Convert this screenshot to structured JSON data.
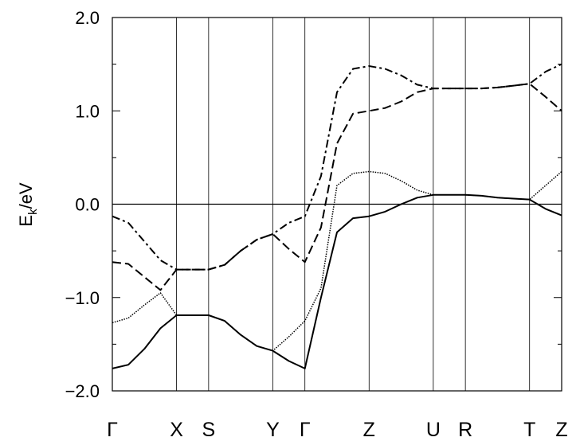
{
  "chart_data": {
    "type": "line",
    "ylabel": [
      "E",
      "k",
      "/eV"
    ],
    "x": [
      0,
      0.5,
      1,
      1.5,
      2,
      2.5,
      3,
      3.5,
      4,
      4.5,
      5,
      5.5,
      6,
      6.5,
      7,
      7.5,
      8,
      8.5,
      9,
      9.5,
      10,
      10.5,
      11,
      11.5,
      12,
      12.5,
      13,
      13.5,
      14
    ],
    "xlim": [
      0,
      14
    ],
    "xticks": [
      {
        "value": 0,
        "label": "Γ"
      },
      {
        "value": 2,
        "label": "X"
      },
      {
        "value": 3,
        "label": "S"
      },
      {
        "value": 5,
        "label": "Y"
      },
      {
        "value": 6,
        "label": "Γ"
      },
      {
        "value": 8,
        "label": "Z"
      },
      {
        "value": 10,
        "label": "U"
      },
      {
        "value": 11,
        "label": "R"
      },
      {
        "value": 13,
        "label": "T"
      },
      {
        "value": 14,
        "label": "Z"
      }
    ],
    "ylim": [
      -2,
      2
    ],
    "yticks": [
      {
        "value": -2,
        "label": "−2.0"
      },
      {
        "value": -1,
        "label": "−1.0"
      },
      {
        "value": 0,
        "label": "0.0"
      },
      {
        "value": 1,
        "label": "1.0"
      },
      {
        "value": 2,
        "label": "2.0"
      }
    ],
    "yminorticks": [
      -1.5,
      -0.5,
      0.5,
      1.5
    ],
    "hlines": [
      0
    ],
    "vlines": true,
    "series": [
      {
        "color": "#000000",
        "dash": "solid",
        "values": [
          -1.76,
          -1.72,
          -1.55,
          -1.33,
          -1.19,
          -1.19,
          -1.19,
          -1.25,
          -1.4,
          -1.52,
          -1.57,
          -1.68,
          -1.76,
          -1.0,
          -0.3,
          -0.15,
          -0.13,
          -0.08,
          0.0,
          0.07,
          0.1,
          0.1,
          0.1,
          0.09,
          0.07,
          0.06,
          0.05,
          -0.05,
          -0.12
        ]
      },
      {
        "color": "#000000",
        "dash": "dotted",
        "values": [
          -1.27,
          -1.22,
          -1.08,
          -0.95,
          -1.19,
          -1.19,
          -1.19,
          -1.25,
          -1.4,
          -1.52,
          -1.57,
          -1.42,
          -1.25,
          -0.9,
          0.2,
          0.33,
          0.35,
          0.33,
          0.25,
          0.15,
          0.1,
          0.1,
          0.1,
          0.09,
          0.07,
          0.06,
          0.05,
          0.2,
          0.35
        ]
      },
      {
        "color": "#000000",
        "dash": "dashed",
        "values": [
          -0.62,
          -0.64,
          -0.78,
          -0.92,
          -0.7,
          -0.7,
          -0.7,
          -0.65,
          -0.5,
          -0.38,
          -0.32,
          -0.48,
          -0.62,
          -0.25,
          0.65,
          0.97,
          1.0,
          1.03,
          1.1,
          1.2,
          1.24,
          1.24,
          1.24,
          1.24,
          1.25,
          1.27,
          1.29,
          1.15,
          1.0
        ]
      },
      {
        "color": "#000000",
        "dash": "dashdot",
        "values": [
          -0.13,
          -0.2,
          -0.4,
          -0.6,
          -0.7,
          -0.7,
          -0.7,
          -0.65,
          -0.5,
          -0.38,
          -0.32,
          -0.2,
          -0.13,
          0.3,
          1.2,
          1.45,
          1.48,
          1.45,
          1.38,
          1.28,
          1.24,
          1.24,
          1.24,
          1.24,
          1.25,
          1.27,
          1.29,
          1.42,
          1.5
        ]
      }
    ]
  }
}
